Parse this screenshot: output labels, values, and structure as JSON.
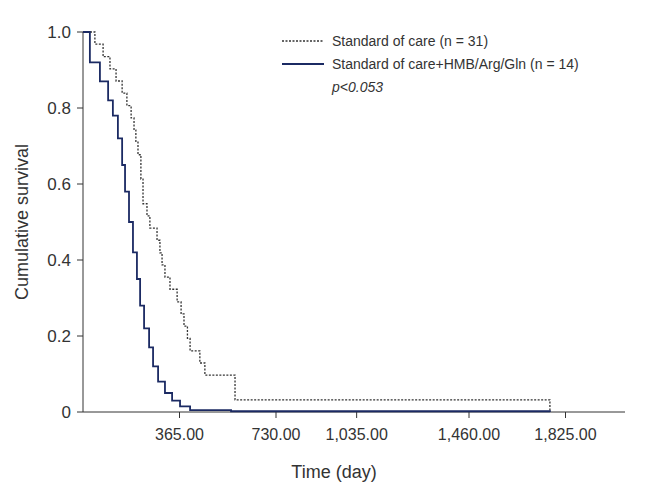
{
  "chart_data": {
    "type": "step",
    "x_label": "Time (day)",
    "y_label": "Cumulative survival",
    "xlim": [
      0,
      2050
    ],
    "ylim": [
      0,
      1
    ],
    "xticks": [
      {
        "value": 365,
        "label": "365.00"
      },
      {
        "value": 730,
        "label": "730.00"
      },
      {
        "value": 1035,
        "label": "1,035.00"
      },
      {
        "value": 1460,
        "label": "1,460.00"
      },
      {
        "value": 1825,
        "label": "1,825.00"
      }
    ],
    "yticks": [
      0,
      {
        "value": 0.2,
        "label": "0.2"
      },
      {
        "value": 0.4,
        "label": "0.4"
      },
      {
        "value": 0.6,
        "label": "0.6"
      },
      {
        "value": 0.8,
        "label": "0.8"
      },
      {
        "value": 1,
        "label": "1.0"
      }
    ],
    "grid": false,
    "legend": "upper right",
    "annotations": [
      "p<0.053"
    ],
    "series": [
      {
        "name": "Standard of care (n = 31)",
        "color": "#333333",
        "line_style": "dotted",
        "x": [
          0,
          45,
          76,
          102,
          125,
          148,
          166,
          182,
          193,
          200,
          208,
          219,
          227,
          242,
          253,
          280,
          291,
          299,
          310,
          329,
          356,
          371,
          382,
          395,
          405,
          442,
          461,
          575,
          1766
        ],
        "values": [
          1,
          0.968,
          0.935,
          0.903,
          0.871,
          0.839,
          0.806,
          0.774,
          0.742,
          0.71,
          0.677,
          0.613,
          0.548,
          0.516,
          0.484,
          0.452,
          0.419,
          0.387,
          0.355,
          0.323,
          0.29,
          0.258,
          0.226,
          0.194,
          0.161,
          0.129,
          0.097,
          0.032,
          0
        ]
      },
      {
        "name": "Standard of care+HMB/Arg/Gln (n = 14)",
        "color": "#1b2a63",
        "line_style": "solid",
        "x": [
          0,
          26,
          64,
          95,
          113,
          132,
          148,
          159,
          174,
          189,
          204,
          216,
          231,
          250,
          265,
          284,
          310,
          337,
          367,
          405,
          560,
          1766
        ],
        "values": [
          1,
          0.92,
          0.87,
          0.82,
          0.78,
          0.72,
          0.65,
          0.58,
          0.5,
          0.42,
          0.35,
          0.28,
          0.22,
          0.17,
          0.12,
          0.08,
          0.05,
          0.03,
          0.015,
          0.005,
          0.002,
          0
        ]
      }
    ]
  }
}
